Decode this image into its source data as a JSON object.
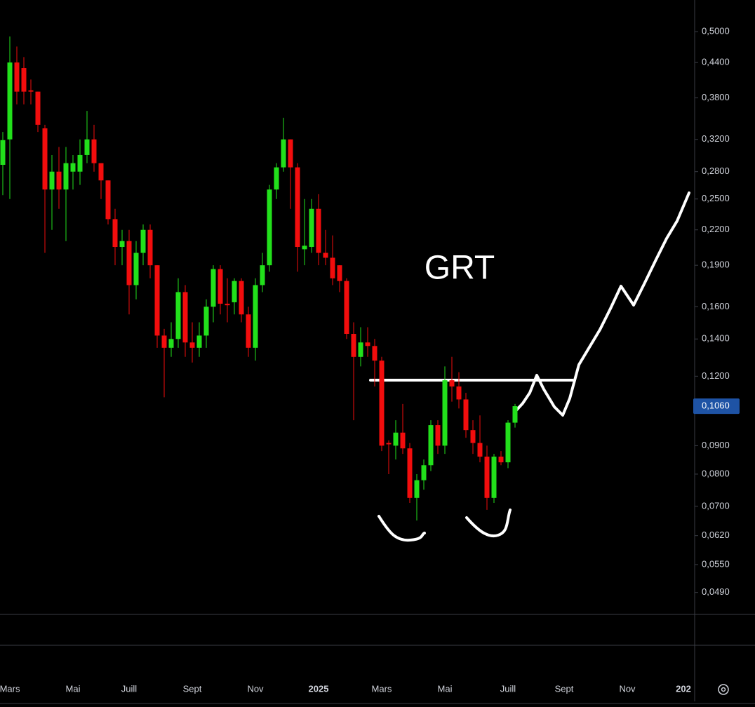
{
  "chart_data": {
    "type": "candlestick",
    "annotation": "GRT",
    "log_scale": true,
    "up_color": "#22e01b",
    "down_color": "#f20d0d",
    "categories": [
      null,
      "Mars",
      null,
      null,
      null,
      null,
      null,
      null,
      null,
      null,
      "Mai",
      null,
      null,
      null,
      null,
      null,
      null,
      null,
      "Juill",
      null,
      null,
      null,
      null,
      null,
      null,
      null,
      null,
      "Sept",
      null,
      null,
      null,
      null,
      null,
      null,
      null,
      null,
      "Nov",
      null,
      null,
      null,
      null,
      null,
      null,
      null,
      null,
      "2025",
      null,
      null,
      null,
      null,
      null,
      null,
      null,
      null,
      "Mars",
      null,
      null,
      null,
      null,
      null,
      null,
      null,
      null,
      "Mai",
      null,
      null,
      null,
      null,
      null,
      null,
      null,
      null,
      "Juill",
      null,
      null,
      null,
      null,
      null,
      null,
      null,
      "Sept",
      null,
      null,
      null,
      null,
      null,
      null,
      null,
      null,
      "Nov",
      null,
      null,
      null,
      null,
      null,
      null,
      null,
      "202"
    ],
    "open": [
      0.288,
      0.32,
      0.44,
      0.43,
      0.392,
      0.39,
      0.335,
      0.26,
      0.28,
      0.26,
      0.28,
      0.28,
      0.3,
      0.32,
      0.29,
      0.27,
      0.23,
      0.205,
      0.21,
      0.175,
      0.2,
      0.22,
      0.19,
      0.142,
      0.135,
      0.14,
      0.17,
      0.138,
      0.135,
      0.142,
      0.16,
      0.187,
      0.162,
      0.163,
      0.178,
      0.155,
      0.135,
      0.175,
      0.19,
      0.26,
      0.285,
      0.32,
      0.285,
      0.203,
      0.205,
      0.24,
      0.2,
      0.196,
      0.19,
      0.178,
      0.143,
      0.13,
      0.138,
      0.136,
      0.128,
      0.091,
      0.09,
      0.095,
      0.089,
      0.0725,
      0.078,
      0.083,
      0.098,
      0.09,
      0.118,
      0.115,
      0.109,
      0.096,
      0.091,
      0.086,
      0.0725,
      0.086,
      0.084,
      0.099,
      null,
      null,
      null,
      null,
      null,
      null,
      null,
      null,
      null,
      null,
      null,
      null,
      null,
      null,
      null,
      null,
      null,
      null,
      null,
      null,
      null,
      null,
      null,
      null
    ],
    "high": [
      0.33,
      0.49,
      0.47,
      0.45,
      0.41,
      0.39,
      0.34,
      0.3,
      0.31,
      0.31,
      0.3,
      0.32,
      0.36,
      0.34,
      0.29,
      0.27,
      0.24,
      0.22,
      0.22,
      0.21,
      0.225,
      0.225,
      0.19,
      0.146,
      0.15,
      0.18,
      0.175,
      0.15,
      0.15,
      0.165,
      0.19,
      0.19,
      0.18,
      0.18,
      0.18,
      0.16,
      0.18,
      0.2,
      0.265,
      0.29,
      0.35,
      0.32,
      0.29,
      0.25,
      0.25,
      0.255,
      0.22,
      0.215,
      0.19,
      0.18,
      0.15,
      0.147,
      0.147,
      0.14,
      0.13,
      0.092,
      0.1,
      0.107,
      0.091,
      0.08,
      0.085,
      0.1,
      0.1,
      0.125,
      0.13,
      0.122,
      0.112,
      0.1,
      0.102,
      0.09,
      0.087,
      0.088,
      0.1,
      0.107,
      null,
      null,
      null,
      null,
      null,
      null,
      null,
      null,
      null,
      null,
      null,
      null,
      null,
      null,
      null,
      null,
      null,
      null,
      null,
      null,
      null,
      null,
      null,
      null
    ],
    "low": [
      0.254,
      0.25,
      0.37,
      0.37,
      0.37,
      0.33,
      0.2,
      0.22,
      0.24,
      0.21,
      0.26,
      0.265,
      0.29,
      0.28,
      0.25,
      0.225,
      0.19,
      0.19,
      0.155,
      0.165,
      0.19,
      0.18,
      0.135,
      0.11,
      0.13,
      0.135,
      0.13,
      0.127,
      0.13,
      0.135,
      0.15,
      0.155,
      0.15,
      0.155,
      0.15,
      0.13,
      0.128,
      0.17,
      0.185,
      0.25,
      0.28,
      0.24,
      0.185,
      0.19,
      0.2,
      0.19,
      0.19,
      0.175,
      0.17,
      0.14,
      0.1,
      0.125,
      0.13,
      0.115,
      0.088,
      0.08,
      0.085,
      0.087,
      0.071,
      0.066,
      0.075,
      0.081,
      0.087,
      0.087,
      0.108,
      0.105,
      0.093,
      0.087,
      0.084,
      0.069,
      0.071,
      0.083,
      0.082,
      0.097,
      null,
      null,
      null,
      null,
      null,
      null,
      null,
      null,
      null,
      null,
      null,
      null,
      null,
      null,
      null,
      null,
      null,
      null,
      null,
      null,
      null,
      null,
      null,
      null
    ],
    "close": [
      0.319,
      0.44,
      0.39,
      0.39,
      0.39,
      0.34,
      0.26,
      0.28,
      0.26,
      0.29,
      0.29,
      0.3,
      0.32,
      0.29,
      0.27,
      0.23,
      0.205,
      0.21,
      0.175,
      0.2,
      0.22,
      0.19,
      0.142,
      0.135,
      0.14,
      0.17,
      0.138,
      0.135,
      0.142,
      0.16,
      0.187,
      0.162,
      0.161,
      0.178,
      0.155,
      0.135,
      0.175,
      0.19,
      0.26,
      0.285,
      0.32,
      0.285,
      0.205,
      0.206,
      0.24,
      0.2,
      0.196,
      0.18,
      0.178,
      0.143,
      0.13,
      0.138,
      0.136,
      0.128,
      0.09,
      0.0905,
      0.095,
      0.089,
      0.0725,
      0.078,
      0.083,
      0.098,
      0.09,
      0.118,
      0.115,
      0.109,
      0.096,
      0.091,
      0.086,
      0.0725,
      0.086,
      0.084,
      0.099,
      0.106,
      null,
      null,
      null,
      null,
      null,
      null,
      null,
      null,
      null,
      null,
      null,
      null,
      null,
      null,
      null,
      null,
      null,
      null,
      null,
      null,
      null,
      null,
      null,
      null
    ],
    "ylim": [
      0.045,
      0.57
    ],
    "yticks": [
      {
        "value": 0.5,
        "label": "0,5000"
      },
      {
        "value": 0.44,
        "label": "0,4400"
      },
      {
        "value": 0.38,
        "label": "0,3800"
      },
      {
        "value": 0.32,
        "label": "0,3200"
      },
      {
        "value": 0.28,
        "label": "0,2800"
      },
      {
        "value": 0.25,
        "label": "0,2500"
      },
      {
        "value": 0.22,
        "label": "0,2200"
      },
      {
        "value": 0.19,
        "label": "0,1900"
      },
      {
        "value": 0.16,
        "label": "0,1600"
      },
      {
        "value": 0.14,
        "label": "0,1400"
      },
      {
        "value": 0.12,
        "label": "0,1200"
      },
      {
        "value": 0.09,
        "label": "0,0900"
      },
      {
        "value": 0.08,
        "label": "0,0800"
      },
      {
        "value": 0.07,
        "label": "0,0700"
      },
      {
        "value": 0.062,
        "label": "0,0620"
      },
      {
        "value": 0.055,
        "label": "0,0550"
      },
      {
        "value": 0.049,
        "label": "0,0490"
      }
    ],
    "last_price": {
      "value": 0.106,
      "label": "0,1060"
    }
  }
}
